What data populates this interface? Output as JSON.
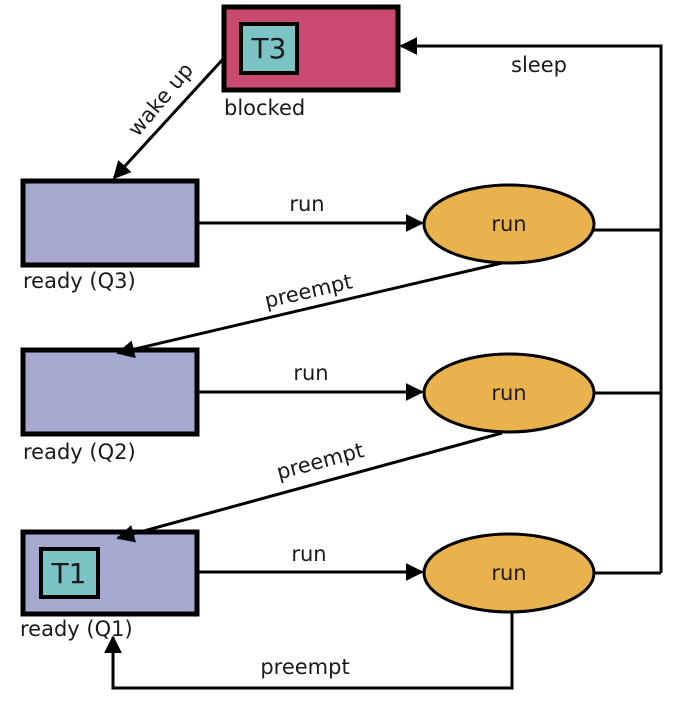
{
  "colors": {
    "blocked_fill": "#c94a6e",
    "ready_fill": "#a6a8cf",
    "run_fill": "#eab24c",
    "thread_fill": "#7cc3c6",
    "line": "#000000"
  },
  "blocked": {
    "label": "blocked",
    "thread": "T3"
  },
  "queues": [
    {
      "label": "ready (Q3)",
      "thread": ""
    },
    {
      "label": "ready (Q2)",
      "thread": ""
    },
    {
      "label": "ready (Q1)",
      "thread": "T1"
    }
  ],
  "run_nodes": [
    "run",
    "run",
    "run"
  ],
  "edges": {
    "run_labels": [
      "run",
      "run",
      "run"
    ],
    "preempt_labels": [
      "preempt",
      "preempt",
      "preempt"
    ],
    "sleep": "sleep",
    "wake_up": "wake up"
  }
}
